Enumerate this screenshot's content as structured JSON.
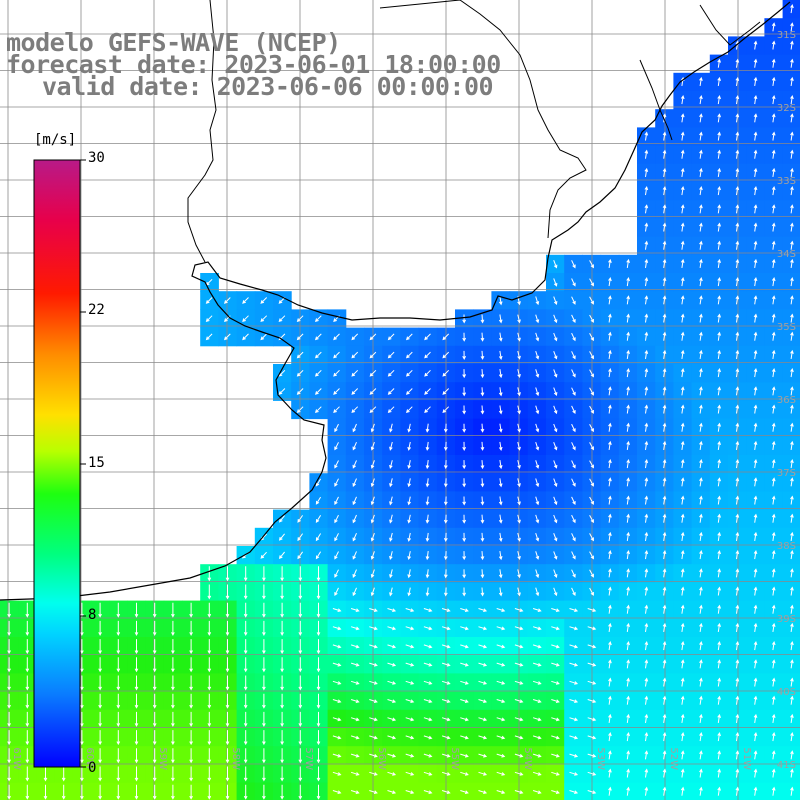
{
  "titles": {
    "line1": "modelo GEFS-WAVE (NCEP)",
    "line2": "forecast date: 2023-06-01 18:00:00",
    "line3": "valid date: 2023-06-06 00:00:00"
  },
  "colorbar": {
    "unit": "[m/s]",
    "labels": {
      "max": "30",
      "high": "22",
      "mid": "15",
      "low": "8",
      "min": "0"
    },
    "colors": [
      "#0000ff",
      "#0a7cff",
      "#00c8ff",
      "#00ffee",
      "#00ff9a",
      "#19ff19",
      "#7dff00",
      "#dcff00",
      "#ffe600",
      "#ff9900",
      "#ff3300",
      "#ff0033",
      "#dd0066",
      "#c0188c"
    ]
  },
  "axes": {
    "lat_labels": [
      "31S",
      "32S",
      "33S",
      "34S",
      "35S",
      "36S",
      "37S",
      "38S",
      "39S",
      "40S",
      "41S"
    ],
    "lon_labels": [
      "61W",
      "60W",
      "59W",
      "58W",
      "57W",
      "56W",
      "55W",
      "54W",
      "53W",
      "52W",
      "51W"
    ]
  },
  "field": {
    "description_colors": {
      "weak": "#0018ff",
      "moderate": "#0a8cff",
      "strong": "#1ef2f0",
      "very_strong": "#22e03a"
    }
  }
}
